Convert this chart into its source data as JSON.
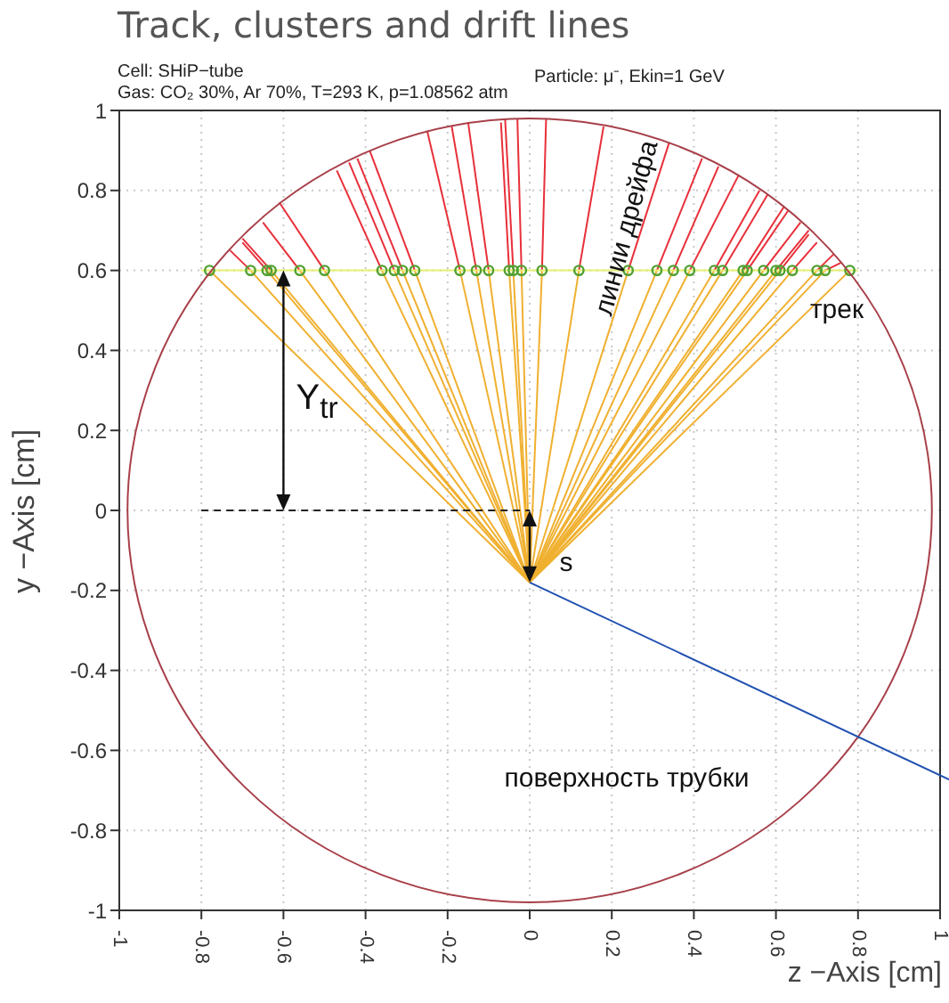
{
  "chart_data": {
    "type": "line",
    "title": "Track, clusters and drift lines",
    "xlabel": "z −Axis [cm]",
    "ylabel": "y −Axis [cm]",
    "xlim": [
      -1,
      1
    ],
    "ylim": [
      -1,
      1
    ],
    "xticks": [
      -1,
      -0.8,
      -0.6,
      -0.4,
      -0.2,
      0,
      0.2,
      0.4,
      0.6,
      0.8,
      1
    ],
    "yticks": [
      -1,
      -0.8,
      -0.6,
      -0.4,
      -0.2,
      0,
      0.2,
      0.4,
      0.6,
      0.8,
      1
    ],
    "grid": true,
    "annotations": [
      "Cell: SHiP−tube",
      "Particle: μ⁻, Ekin=1 GeV",
      "Gas: CO₂ 30%, Ar 70%, T=293 K, p=1.08562 atm",
      "линии дрейфа",
      "трек",
      "Y$_{tr}$",
      "s",
      "поверхность трубки"
    ],
    "series": [
      {
        "color": "#f0b030",
        "x": [
          -0.78,
          0
        ],
        "values": [
          0.6,
          -0.18
        ]
      },
      {
        "color": "#f0b030",
        "x": [
          -0.68,
          0
        ],
        "values": [
          0.6,
          -0.18
        ]
      },
      {
        "color": "#f0b030",
        "x": [
          -0.64,
          0
        ],
        "values": [
          0.6,
          -0.18
        ]
      },
      {
        "color": "#f0b030",
        "x": [
          -0.63,
          0
        ],
        "values": [
          0.6,
          -0.18
        ]
      },
      {
        "color": "#f0b030",
        "x": [
          -0.56,
          0
        ],
        "values": [
          0.6,
          -0.18
        ]
      },
      {
        "color": "#f0b030",
        "x": [
          -0.5,
          0
        ],
        "values": [
          0.6,
          -0.18
        ]
      },
      {
        "color": "#f0b030",
        "x": [
          -0.36,
          0
        ],
        "values": [
          0.6,
          -0.18
        ]
      },
      {
        "color": "#f0b030",
        "x": [
          -0.33,
          0
        ],
        "values": [
          0.6,
          -0.18
        ]
      },
      {
        "color": "#f0b030",
        "x": [
          -0.31,
          0
        ],
        "values": [
          0.6,
          -0.18
        ]
      },
      {
        "color": "#f0b030",
        "x": [
          -0.28,
          0
        ],
        "values": [
          0.6,
          -0.18
        ]
      },
      {
        "color": "#f0b030",
        "x": [
          -0.17,
          0
        ],
        "values": [
          0.6,
          -0.18
        ]
      },
      {
        "color": "#f0b030",
        "x": [
          -0.13,
          0
        ],
        "values": [
          0.6,
          -0.18
        ]
      },
      {
        "color": "#f0b030",
        "x": [
          -0.1,
          0
        ],
        "values": [
          0.6,
          -0.18
        ]
      },
      {
        "color": "#f0b030",
        "x": [
          -0.05,
          0
        ],
        "values": [
          0.6,
          -0.18
        ]
      },
      {
        "color": "#f0b030",
        "x": [
          -0.04,
          0
        ],
        "values": [
          0.6,
          -0.18
        ]
      },
      {
        "color": "#f0b030",
        "x": [
          -0.02,
          0
        ],
        "values": [
          0.6,
          -0.18
        ]
      },
      {
        "color": "#f0b030",
        "x": [
          0.03,
          0
        ],
        "values": [
          0.6,
          -0.18
        ]
      },
      {
        "color": "#f0b030",
        "x": [
          0.12,
          0
        ],
        "values": [
          0.6,
          -0.18
        ]
      },
      {
        "color": "#f0b030",
        "x": [
          0.24,
          0
        ],
        "values": [
          0.6,
          -0.18
        ]
      },
      {
        "color": "#f0b030",
        "x": [
          0.31,
          0
        ],
        "values": [
          0.6,
          -0.18
        ]
      },
      {
        "color": "#f0b030",
        "x": [
          0.35,
          0
        ],
        "values": [
          0.6,
          -0.18
        ]
      },
      {
        "color": "#f0b030",
        "x": [
          0.39,
          0
        ],
        "values": [
          0.6,
          -0.18
        ]
      },
      {
        "color": "#f0b030",
        "x": [
          0.45,
          0
        ],
        "values": [
          0.6,
          -0.18
        ]
      },
      {
        "color": "#f0b030",
        "x": [
          0.47,
          0
        ],
        "values": [
          0.6,
          -0.18
        ]
      },
      {
        "color": "#f0b030",
        "x": [
          0.52,
          0
        ],
        "values": [
          0.6,
          -0.18
        ]
      },
      {
        "color": "#f0b030",
        "x": [
          0.53,
          0
        ],
        "values": [
          0.6,
          -0.18
        ]
      },
      {
        "color": "#f0b030",
        "x": [
          0.57,
          0
        ],
        "values": [
          0.6,
          -0.18
        ]
      },
      {
        "color": "#f0b030",
        "x": [
          0.6,
          0
        ],
        "values": [
          0.6,
          -0.18
        ]
      },
      {
        "color": "#f0b030",
        "x": [
          0.61,
          0
        ],
        "values": [
          0.6,
          -0.18
        ]
      },
      {
        "color": "#f0b030",
        "x": [
          0.64,
          0
        ],
        "values": [
          0.6,
          -0.18
        ]
      },
      {
        "color": "#f0b030",
        "x": [
          0.7,
          0
        ],
        "values": [
          0.6,
          -0.18
        ]
      },
      {
        "color": "#f0b030",
        "x": [
          0.72,
          0
        ],
        "values": [
          0.6,
          -0.18
        ]
      },
      {
        "color": "#f0b030",
        "x": [
          0.78,
          0
        ],
        "values": [
          0.6,
          -0.18
        ]
      },
      {
        "color": "#e8303a",
        "x": [
          -0.73,
          -0.68
        ],
        "values": [
          0.65,
          0.6
        ]
      },
      {
        "color": "#e8303a",
        "x": [
          -0.7,
          -0.64
        ],
        "values": [
          0.67,
          0.6
        ]
      },
      {
        "color": "#e8303a",
        "x": [
          -0.7,
          -0.63
        ],
        "values": [
          0.68,
          0.6
        ]
      },
      {
        "color": "#e8303a",
        "x": [
          -0.65,
          -0.56
        ],
        "values": [
          0.72,
          0.6
        ]
      },
      {
        "color": "#e8303a",
        "x": [
          -0.61,
          -0.5
        ],
        "values": [
          0.77,
          0.6
        ]
      },
      {
        "color": "#e8303a",
        "x": [
          -0.47,
          -0.36
        ],
        "values": [
          0.85,
          0.6
        ]
      },
      {
        "color": "#e8303a",
        "x": [
          -0.44,
          -0.33
        ],
        "values": [
          0.87,
          0.6
        ]
      },
      {
        "color": "#e8303a",
        "x": [
          -0.42,
          -0.31
        ],
        "values": [
          0.88,
          0.6
        ]
      },
      {
        "color": "#e8303a",
        "x": [
          -0.39,
          -0.28
        ],
        "values": [
          0.9,
          0.6
        ]
      },
      {
        "color": "#e8303a",
        "x": [
          -0.25,
          -0.17
        ],
        "values": [
          0.95,
          0.6
        ]
      },
      {
        "color": "#e8303a",
        "x": [
          -0.19,
          -0.13
        ],
        "values": [
          0.96,
          0.6
        ]
      },
      {
        "color": "#e8303a",
        "x": [
          -0.15,
          -0.1
        ],
        "values": [
          0.97,
          0.6
        ]
      },
      {
        "color": "#e8303a",
        "x": [
          -0.07,
          -0.05
        ],
        "values": [
          0.97,
          0.6
        ]
      },
      {
        "color": "#e8303a",
        "x": [
          -0.06,
          -0.04
        ],
        "values": [
          0.98,
          0.6
        ]
      },
      {
        "color": "#e8303a",
        "x": [
          -0.03,
          -0.02
        ],
        "values": [
          0.98,
          0.6
        ]
      },
      {
        "color": "#e8303a",
        "x": [
          0.03,
          0.04
        ],
        "values": [
          0.6,
          0.98
        ]
      },
      {
        "color": "#e8303a",
        "x": [
          0.12,
          0.18
        ],
        "values": [
          0.6,
          0.96
        ]
      },
      {
        "color": "#e8303a",
        "x": [
          0.24,
          0.34
        ],
        "values": [
          0.6,
          0.92
        ]
      },
      {
        "color": "#e8303a",
        "x": [
          0.31,
          0.42
        ],
        "values": [
          0.6,
          0.88
        ]
      },
      {
        "color": "#e8303a",
        "x": [
          0.35,
          0.46
        ],
        "values": [
          0.6,
          0.86
        ]
      },
      {
        "color": "#e8303a",
        "x": [
          0.39,
          0.51
        ],
        "values": [
          0.6,
          0.84
        ]
      },
      {
        "color": "#e8303a",
        "x": [
          0.45,
          0.56
        ],
        "values": [
          0.6,
          0.8
        ]
      },
      {
        "color": "#e8303a",
        "x": [
          0.47,
          0.58
        ],
        "values": [
          0.6,
          0.79
        ]
      },
      {
        "color": "#e8303a",
        "x": [
          0.52,
          0.62
        ],
        "values": [
          0.6,
          0.76
        ]
      },
      {
        "color": "#e8303a",
        "x": [
          0.53,
          0.63
        ],
        "values": [
          0.6,
          0.75
        ]
      },
      {
        "color": "#e8303a",
        "x": [
          0.57,
          0.66
        ],
        "values": [
          0.6,
          0.72
        ]
      },
      {
        "color": "#e8303a",
        "x": [
          0.6,
          0.68
        ],
        "values": [
          0.6,
          0.7
        ]
      },
      {
        "color": "#e8303a",
        "x": [
          0.61,
          0.68
        ],
        "values": [
          0.6,
          0.69
        ]
      },
      {
        "color": "#e8303a",
        "x": [
          0.64,
          0.7
        ],
        "values": [
          0.6,
          0.67
        ]
      },
      {
        "color": "#e8303a",
        "x": [
          0.7,
          0.74
        ],
        "values": [
          0.6,
          0.64
        ]
      },
      {
        "color": "#e8303a",
        "x": [
          0.72,
          0.76
        ],
        "values": [
          0.6,
          0.62
        ]
      },
      {
        "color": "#e6f070",
        "x": [
          -0.8,
          0.8
        ],
        "values": [
          0.6,
          0.6
        ]
      },
      {
        "type": "scatter",
        "color": "#50a030",
        "marker": "circle",
        "x": [
          -0.78,
          -0.68,
          -0.64,
          -0.63,
          -0.56,
          -0.5,
          -0.36,
          -0.33,
          -0.31,
          -0.28,
          -0.17,
          -0.13,
          -0.1,
          -0.05,
          -0.04,
          -0.02,
          0.03,
          0.12,
          0.24,
          0.31,
          0.35,
          0.39,
          0.45,
          0.47,
          0.52,
          0.53,
          0.57,
          0.6,
          0.61,
          0.64,
          0.7,
          0.72,
          0.78
        ],
        "values": [
          0.6,
          0.6,
          0.6,
          0.6,
          0.6,
          0.6,
          0.6,
          0.6,
          0.6,
          0.6,
          0.6,
          0.6,
          0.6,
          0.6,
          0.6,
          0.6,
          0.6,
          0.6,
          0.6,
          0.6,
          0.6,
          0.6,
          0.6,
          0.6,
          0.6,
          0.6,
          0.6,
          0.6,
          0.6,
          0.6,
          0.6,
          0.6,
          0.6
        ]
      }
    ]
  }
}
